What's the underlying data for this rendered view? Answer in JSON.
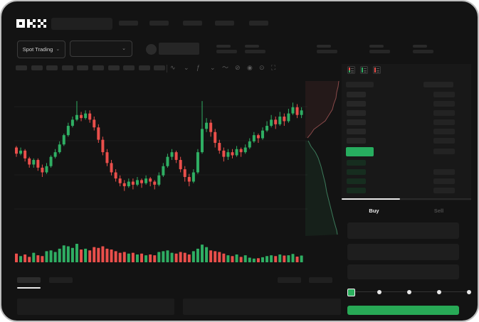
{
  "app": {
    "brand": "OKX"
  },
  "ticker": {
    "market_selector_label": "Spot Trading",
    "stat_group_count": 5
  },
  "toolbar": {
    "timeframe_placeholder_count": 10,
    "icons": [
      {
        "name": "chart-type-icon",
        "glyph": "∿"
      },
      {
        "name": "chevron-down-icon",
        "glyph": "⌄"
      },
      {
        "name": "indicators-icon",
        "glyph": "ƒ"
      },
      {
        "name": "chevron-down-icon",
        "glyph": "⌄"
      },
      {
        "name": "line-tool-icon",
        "glyph": "〜"
      },
      {
        "name": "measure-icon",
        "glyph": "⊘"
      },
      {
        "name": "camera-icon",
        "glyph": "◉"
      },
      {
        "name": "settings-icon",
        "glyph": "⊙"
      },
      {
        "name": "fullscreen-icon",
        "glyph": "⛶"
      }
    ]
  },
  "orderbook": {
    "view_modes": [
      "book-combined",
      "book-buy-only",
      "book-sell-only"
    ],
    "ask_row_count": 6,
    "bid_row_count": 4,
    "right_row_skip_first_bid": true,
    "last_price_color": "#27ad5f",
    "ask_bar_color": "#272727",
    "bid_bar_color": "#162d1f",
    "amount_bar_color": "#232323"
  },
  "trade_panel": {
    "tabs": {
      "buy": "Buy",
      "sell": "Sell"
    },
    "active_tab": "Buy",
    "input_row_count": 3,
    "slider_stop_count": 5,
    "slider_active_color": "#2bb05e",
    "submit_color": "#28a956"
  },
  "colors": {
    "up": "#2fae63",
    "down": "#ea4f4b",
    "grid": "#1e1e1e",
    "depth_ask_line": "#8a4a4a",
    "depth_ask_fill": "rgba(190,80,75,0.10)",
    "depth_bid_line": "#3c7a5a",
    "depth_bid_fill": "rgba(60,190,120,0.08)"
  },
  "chart_data": {
    "type": "candlestick",
    "title": "",
    "xlabel": "",
    "ylabel": "",
    "price_scale": [
      0,
      100
    ],
    "candles_ochl_format": "[open, close, low, high] on 0-100 relative price scale, no axis labels visible",
    "candles": [
      [
        58,
        54,
        52,
        59
      ],
      [
        54,
        56,
        53,
        58
      ],
      [
        56,
        51,
        49,
        57
      ],
      [
        51,
        47,
        45,
        52
      ],
      [
        47,
        50,
        45,
        51
      ],
      [
        50,
        45,
        43,
        51
      ],
      [
        45,
        42,
        39,
        47
      ],
      [
        42,
        46,
        41,
        48
      ],
      [
        46,
        52,
        45,
        53
      ],
      [
        52,
        55,
        51,
        57
      ],
      [
        55,
        60,
        54,
        62
      ],
      [
        60,
        66,
        59,
        67
      ],
      [
        66,
        72,
        65,
        74
      ],
      [
        72,
        76,
        71,
        78
      ],
      [
        76,
        79,
        75,
        88
      ],
      [
        79,
        77,
        75,
        81
      ],
      [
        77,
        80,
        76,
        82
      ],
      [
        80,
        76,
        74,
        82
      ],
      [
        76,
        71,
        69,
        78
      ],
      [
        71,
        63,
        61,
        73
      ],
      [
        63,
        55,
        53,
        65
      ],
      [
        55,
        48,
        46,
        57
      ],
      [
        48,
        42,
        40,
        50
      ],
      [
        42,
        38,
        36,
        44
      ],
      [
        38,
        35,
        33,
        40
      ],
      [
        35,
        33,
        30,
        37
      ],
      [
        33,
        36,
        32,
        38
      ],
      [
        36,
        34,
        31,
        38
      ],
      [
        34,
        37,
        33,
        39
      ],
      [
        37,
        35,
        32,
        38
      ],
      [
        35,
        38,
        34,
        40
      ],
      [
        38,
        36,
        33,
        39
      ],
      [
        36,
        34,
        31,
        37
      ],
      [
        34,
        40,
        33,
        42
      ],
      [
        40,
        46,
        39,
        48
      ],
      [
        46,
        52,
        45,
        54
      ],
      [
        52,
        55,
        50,
        57
      ],
      [
        55,
        50,
        48,
        56
      ],
      [
        50,
        44,
        42,
        52
      ],
      [
        44,
        39,
        36,
        46
      ],
      [
        39,
        36,
        33,
        41
      ],
      [
        36,
        42,
        35,
        44
      ],
      [
        42,
        55,
        41,
        57
      ],
      [
        55,
        70,
        54,
        88
      ],
      [
        70,
        74,
        68,
        77
      ],
      [
        74,
        68,
        65,
        76
      ],
      [
        68,
        61,
        58,
        70
      ],
      [
        61,
        56,
        54,
        63
      ],
      [
        56,
        52,
        49,
        58
      ],
      [
        52,
        55,
        50,
        57
      ],
      [
        55,
        53,
        51,
        57
      ],
      [
        53,
        57,
        52,
        59
      ],
      [
        57,
        55,
        52,
        58
      ],
      [
        55,
        58,
        54,
        60
      ],
      [
        58,
        62,
        57,
        64
      ],
      [
        62,
        66,
        61,
        68
      ],
      [
        66,
        64,
        61,
        67
      ],
      [
        64,
        69,
        63,
        71
      ],
      [
        69,
        72,
        68,
        75
      ],
      [
        72,
        76,
        71,
        79
      ],
      [
        76,
        73,
        70,
        78
      ],
      [
        73,
        78,
        72,
        81
      ],
      [
        78,
        75,
        72,
        80
      ],
      [
        75,
        80,
        74,
        83
      ],
      [
        80,
        84,
        79,
        87
      ],
      [
        84,
        79,
        77,
        86
      ],
      [
        79,
        82,
        77,
        84
      ]
    ],
    "volumes": [
      40,
      25,
      35,
      20,
      45,
      30,
      25,
      55,
      60,
      50,
      70,
      90,
      85,
      75,
      100,
      65,
      70,
      60,
      80,
      75,
      85,
      70,
      65,
      55,
      45,
      50,
      40,
      45,
      35,
      40,
      30,
      35,
      30,
      50,
      55,
      60,
      45,
      40,
      50,
      45,
      35,
      55,
      70,
      95,
      80,
      60,
      55,
      50,
      40,
      30,
      25,
      35,
      20,
      30,
      15,
      10,
      12,
      18,
      25,
      30,
      25,
      35,
      28,
      30,
      38,
      22,
      28
    ],
    "depth_sideways": {
      "asks_line": [
        [
          47,
          0
        ],
        [
          46,
          8
        ],
        [
          44,
          16
        ],
        [
          43,
          24
        ],
        [
          40,
          32
        ],
        [
          38,
          40
        ],
        [
          33,
          48
        ],
        [
          28,
          56
        ],
        [
          20,
          62
        ],
        [
          12,
          68
        ],
        [
          8,
          74
        ],
        [
          3,
          80
        ]
      ],
      "bids_line": [
        [
          4,
          84
        ],
        [
          8,
          92
        ],
        [
          14,
          100
        ],
        [
          18,
          108
        ],
        [
          22,
          120
        ],
        [
          25,
          132
        ],
        [
          28,
          144
        ],
        [
          30,
          156
        ],
        [
          33,
          168
        ],
        [
          36,
          180
        ],
        [
          40,
          196
        ],
        [
          44,
          210
        ],
        [
          45,
          216
        ]
      ]
    },
    "gridlines_y_local": [
      38,
      86,
      134,
      182
    ],
    "legend": "none",
    "axis_labels_visible": false
  }
}
